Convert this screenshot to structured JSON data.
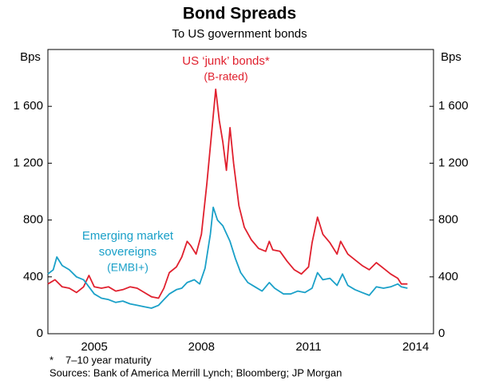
{
  "chart_data": {
    "type": "line",
    "title": "Bond Spreads",
    "subtitle": "To US government bonds",
    "y_label": "Bps",
    "y2_label": "Bps",
    "xlim": [
      2004.2,
      2015.0
    ],
    "xticks": [
      {
        "value": 2005.5,
        "label": "2005"
      },
      {
        "value": 2008.5,
        "label": "2008"
      },
      {
        "value": 2011.5,
        "label": "2011"
      },
      {
        "value": 2014.5,
        "label": "2014"
      }
    ],
    "ylim": [
      0,
      2000
    ],
    "yticks": [
      0,
      400,
      800,
      {
        "value": 1200,
        "label": "1 200"
      },
      {
        "value": 1600,
        "label": "1 600"
      }
    ],
    "y2lim": [
      0,
      2000
    ],
    "y2ticks": [
      0,
      400,
      800,
      {
        "value": 1200,
        "label": "1 200"
      },
      {
        "value": 1600,
        "label": "1 600"
      }
    ],
    "grid": false,
    "series": [
      {
        "label_lines": [
          "US ‘junk’ bonds*",
          "(B-rated)"
        ],
        "color": "#e0202e",
        "x": [
          2004.2,
          2004.4,
          2004.6,
          2004.8,
          2005.0,
          2005.2,
          2005.35,
          2005.5,
          2005.7,
          2005.9,
          2006.1,
          2006.3,
          2006.5,
          2006.7,
          2006.9,
          2007.1,
          2007.3,
          2007.45,
          2007.6,
          2007.8,
          2007.95,
          2008.1,
          2008.2,
          2008.35,
          2008.5,
          2008.65,
          2008.8,
          2008.9,
          2009.0,
          2009.1,
          2009.2,
          2009.3,
          2009.4,
          2009.55,
          2009.7,
          2009.9,
          2010.1,
          2010.3,
          2010.4,
          2010.5,
          2010.7,
          2010.9,
          2011.1,
          2011.3,
          2011.5,
          2011.6,
          2011.75,
          2011.9,
          2012.1,
          2012.3,
          2012.4,
          2012.6,
          2012.8,
          2013.0,
          2013.2,
          2013.4,
          2013.6,
          2013.8,
          2014.0,
          2014.1,
          2014.27
        ],
        "values": [
          350,
          380,
          330,
          320,
          290,
          330,
          410,
          330,
          320,
          330,
          300,
          310,
          330,
          320,
          290,
          260,
          250,
          320,
          430,
          470,
          540,
          650,
          620,
          560,
          700,
          1050,
          1450,
          1720,
          1500,
          1350,
          1150,
          1450,
          1200,
          900,
          750,
          660,
          600,
          580,
          650,
          590,
          580,
          510,
          450,
          420,
          470,
          640,
          820,
          700,
          640,
          560,
          650,
          560,
          520,
          480,
          450,
          500,
          460,
          420,
          390,
          350,
          350
        ]
      },
      {
        "label_lines": [
          "Emerging market",
          "sovereigns",
          "(EMBI+)"
        ],
        "color": "#1aa0c8",
        "x": [
          2004.2,
          2004.35,
          2004.45,
          2004.6,
          2004.8,
          2005.0,
          2005.2,
          2005.35,
          2005.5,
          2005.7,
          2005.9,
          2006.1,
          2006.3,
          2006.5,
          2006.7,
          2006.9,
          2007.1,
          2007.3,
          2007.45,
          2007.6,
          2007.8,
          2007.95,
          2008.1,
          2008.3,
          2008.45,
          2008.6,
          2008.75,
          2008.83,
          2008.95,
          2009.1,
          2009.3,
          2009.45,
          2009.6,
          2009.8,
          2010.0,
          2010.2,
          2010.4,
          2010.55,
          2010.8,
          2011.0,
          2011.2,
          2011.4,
          2011.6,
          2011.75,
          2011.9,
          2012.1,
          2012.3,
          2012.45,
          2012.6,
          2012.8,
          2013.0,
          2013.2,
          2013.4,
          2013.6,
          2013.8,
          2014.0,
          2014.1,
          2014.27
        ],
        "values": [
          420,
          450,
          540,
          480,
          450,
          400,
          380,
          330,
          280,
          250,
          240,
          220,
          230,
          210,
          200,
          190,
          180,
          200,
          240,
          280,
          310,
          320,
          360,
          380,
          350,
          460,
          700,
          890,
          800,
          760,
          650,
          530,
          430,
          360,
          330,
          300,
          360,
          320,
          280,
          280,
          300,
          290,
          320,
          430,
          380,
          390,
          340,
          420,
          340,
          310,
          290,
          270,
          330,
          320,
          330,
          350,
          330,
          320
        ]
      }
    ],
    "footnote_mark": "*",
    "footnote": "7–10 year maturity",
    "source": "Sources: Bank of America Merrill Lynch; Bloomberg; JP Morgan"
  }
}
